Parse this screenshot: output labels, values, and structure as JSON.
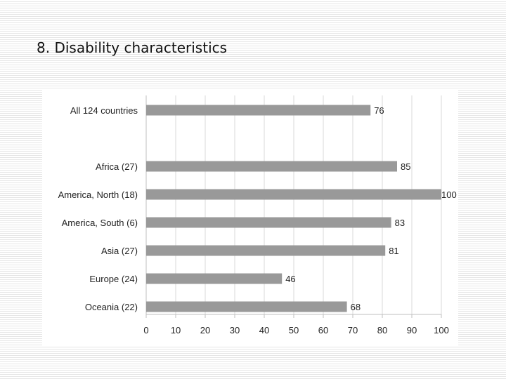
{
  "slide": {
    "title": "8. Disability characteristics"
  },
  "chart_data": {
    "type": "bar",
    "orientation": "horizontal",
    "categories": [
      "All 124 countries",
      "",
      "Africa (27)",
      "America, North (18)",
      "America, South (6)",
      "Asia (27)",
      "Europe (24)",
      "Oceania (22)"
    ],
    "values": [
      76,
      null,
      85,
      100,
      83,
      81,
      46,
      68
    ],
    "xlim": [
      0,
      100
    ],
    "xticks": [
      0,
      10,
      20,
      30,
      40,
      50,
      60,
      70,
      80,
      90,
      100
    ],
    "grid": "vertical",
    "data_labels": true,
    "bar_color": "#999999",
    "grid_color": "#d9d9d9",
    "axis_color": "#bfbfbf"
  }
}
